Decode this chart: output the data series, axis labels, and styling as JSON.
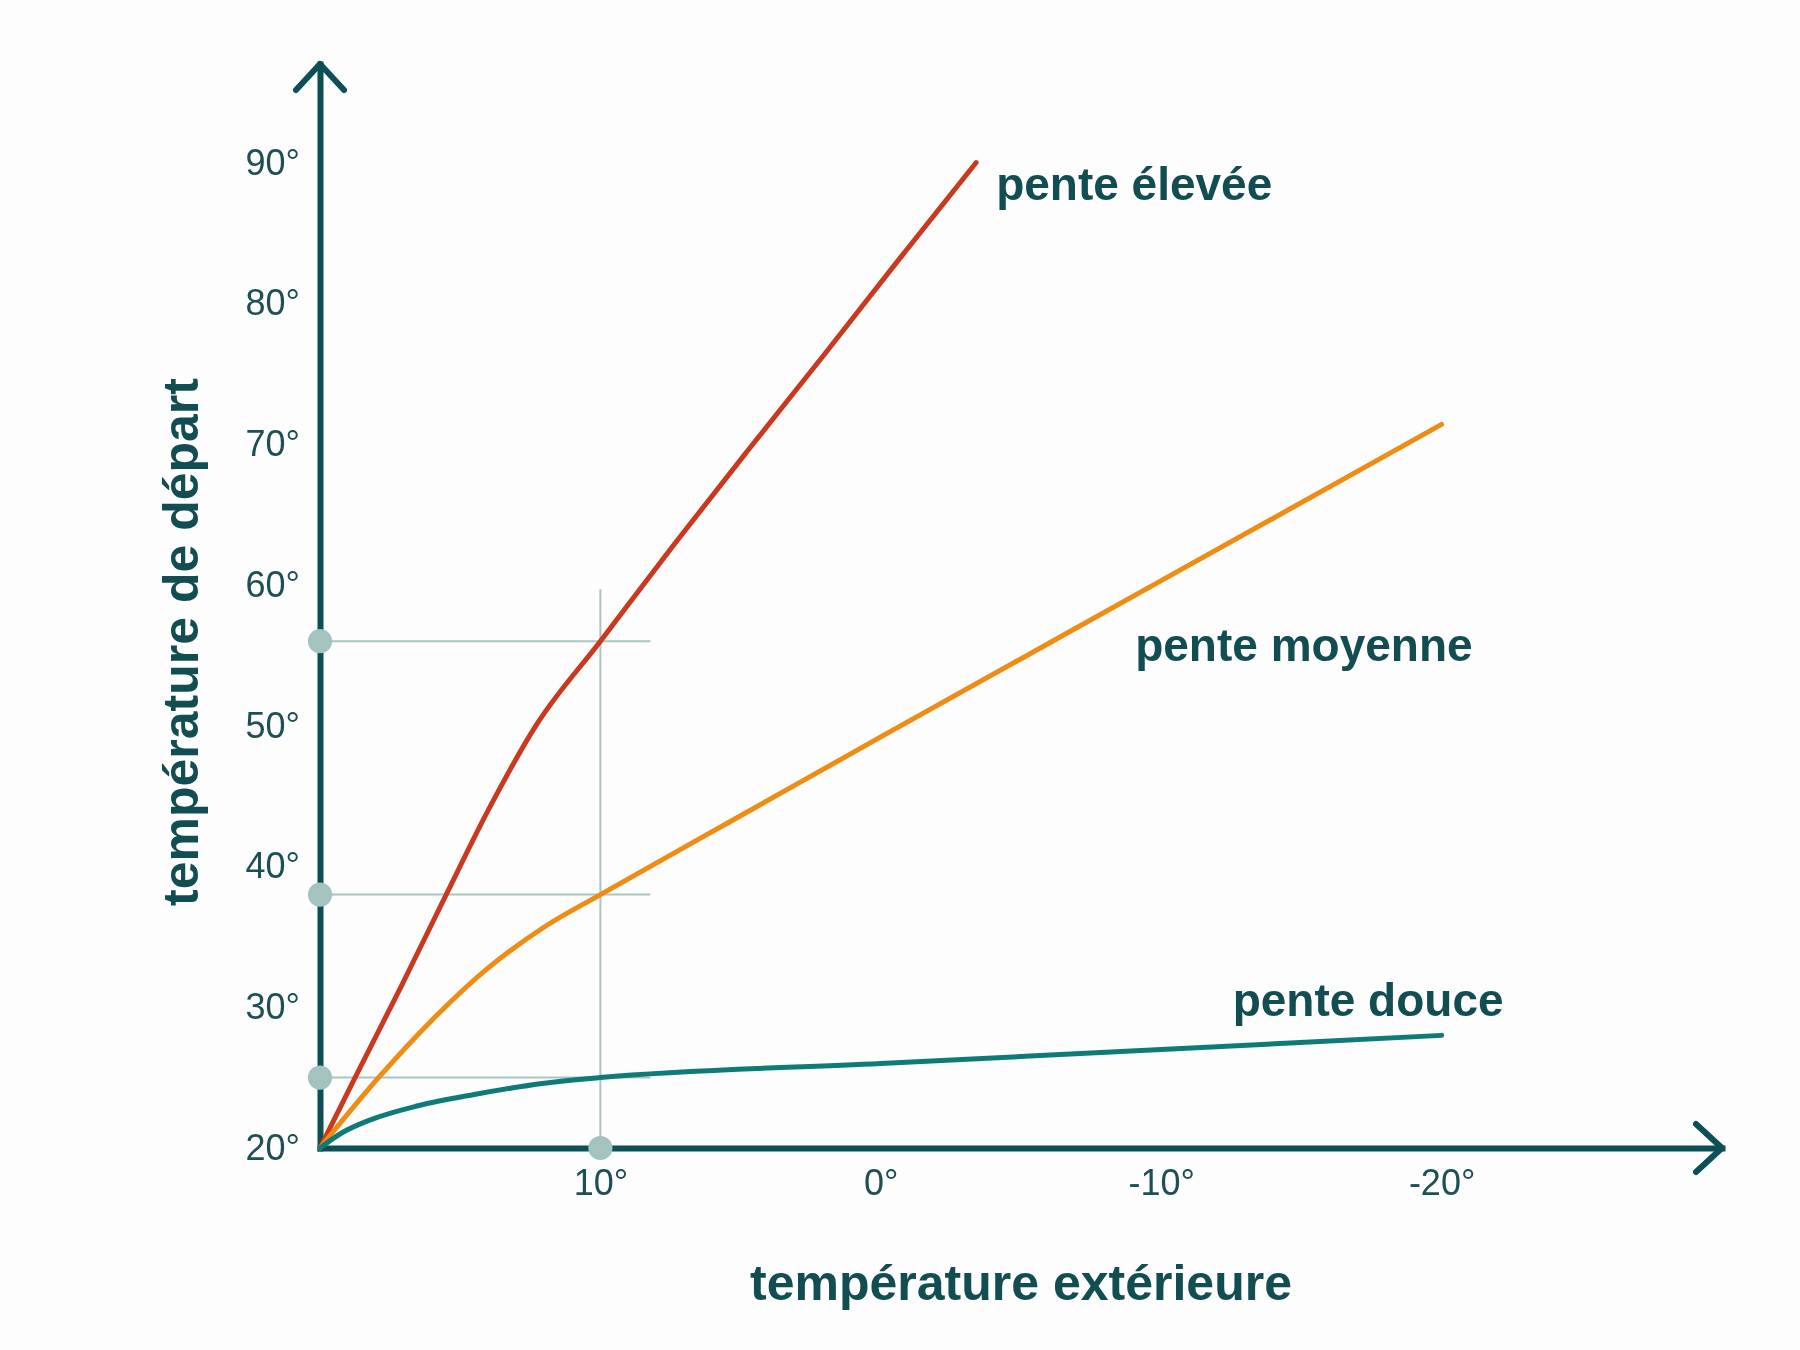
{
  "chart_data": {
    "type": "line",
    "xlabel": "température extérieure",
    "ylabel": "température de départ",
    "xlim": [
      20,
      -30
    ],
    "ylim": [
      20,
      97
    ],
    "xticks": [
      {
        "value": 10,
        "label": "10°"
      },
      {
        "value": 0,
        "label": "0°"
      },
      {
        "value": -10,
        "label": "-10°"
      },
      {
        "value": -20,
        "label": "-20°"
      }
    ],
    "yticks": [
      {
        "value": 20,
        "label": "20°"
      },
      {
        "value": 30,
        "label": "30°"
      },
      {
        "value": 40,
        "label": "40°"
      },
      {
        "value": 50,
        "label": "50°"
      },
      {
        "value": 60,
        "label": "60°"
      },
      {
        "value": 70,
        "label": "70°"
      },
      {
        "value": 80,
        "label": "80°"
      },
      {
        "value": 90,
        "label": "90°"
      }
    ],
    "series": [
      {
        "name": "pente élevée",
        "color": "#c9391f",
        "x": [
          20,
          18.75,
          17.1,
          15.5,
          14,
          12.3,
          10,
          7.4,
          4.8,
          2,
          -0.6,
          -3.4
        ],
        "values": [
          20,
          25,
          31.5,
          38,
          44,
          50,
          56,
          62.8,
          69.4,
          76.4,
          83,
          90
        ]
      },
      {
        "name": "pente moyenne",
        "color": "#ee8c14",
        "x": [
          20,
          18,
          16,
          14,
          12,
          10,
          5,
          0,
          -10,
          -20
        ],
        "values": [
          20,
          24.8,
          29.1,
          32.8,
          35.7,
          38,
          43.6,
          49.2,
          60.3,
          71.4
        ]
      },
      {
        "name": "pente douce",
        "color": "#0e7b79",
        "x": [
          20,
          19.2,
          18.2,
          16.5,
          14.5,
          12,
          10,
          0,
          -10,
          -20
        ],
        "values": [
          20,
          21.1,
          22,
          23,
          23.8,
          24.6,
          25,
          26,
          27,
          28
        ]
      },
      {
        "type": "scatter",
        "marker": "circle",
        "color": "#a2c3be",
        "x": [
          20,
          20,
          20,
          10
        ],
        "values": [
          56,
          38,
          25,
          20
        ]
      }
    ],
    "ref_lines": [
      {
        "axis": "y",
        "value": 56,
        "color": "#a9c6c2"
      },
      {
        "axis": "y",
        "value": 38,
        "color": "#a9c6c2"
      },
      {
        "axis": "y",
        "value": 25,
        "color": "#a9c6c2"
      },
      {
        "axis": "x",
        "value": 10,
        "color": "#a9c6c2"
      }
    ]
  }
}
